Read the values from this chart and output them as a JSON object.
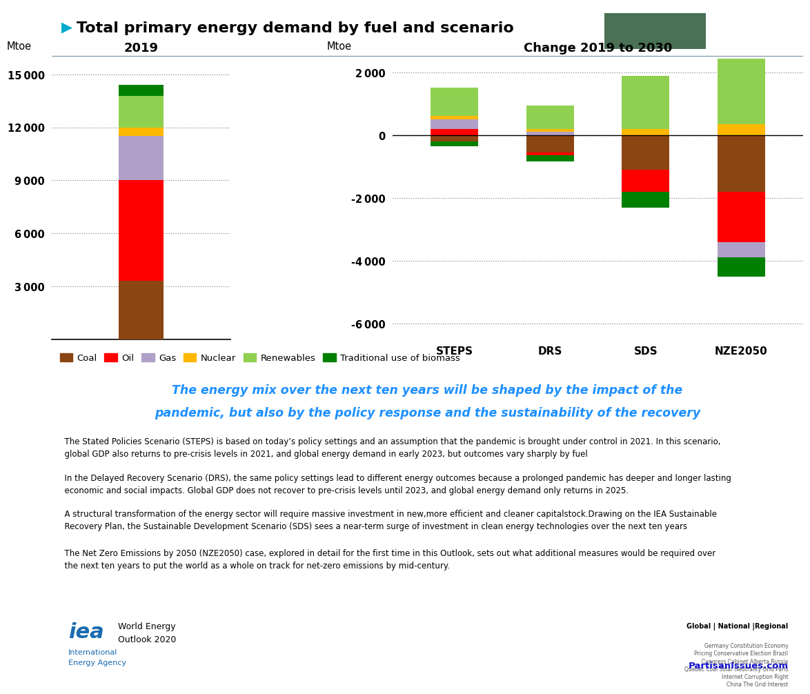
{
  "title": "Total primary energy demand by fuel and scenario",
  "arrow_color": "#00AACC",
  "green_box_color": "#4a7055",
  "left_title": "2019",
  "right_title": "Change 2019 to 2030",
  "ylabel": "Mtoe",
  "fuel_labels": [
    "Coal",
    "Oil",
    "Gas",
    "Nuclear",
    "Renewables",
    "Traditional use of biomass"
  ],
  "fuel_colors": [
    "#8B4513",
    "#FF0000",
    "#B0A0C8",
    "#FFB800",
    "#90D050",
    "#008000"
  ],
  "bar_2019": {
    "Coal": 3300,
    "Oil": 5700,
    "Gas": 2500,
    "Nuclear": 500,
    "Renewables": 1800,
    "Traditional use of biomass": 600
  },
  "left_ylim": [
    0,
    16000
  ],
  "left_yticks": [
    3000,
    6000,
    9000,
    12000,
    15000
  ],
  "right_ylim": [
    -6500,
    2500
  ],
  "right_yticks": [
    -6000,
    -4000,
    -2000,
    0,
    2000
  ],
  "scenarios": [
    "STEPS",
    "DRS",
    "SDS",
    "NZE2050"
  ],
  "change_pos": {
    "STEPS": {
      "Oil": 200,
      "Gas": 300,
      "Nuclear": 120,
      "Renewables": 900
    },
    "DRS": {
      "Gas": 120,
      "Nuclear": 80,
      "Renewables": 750
    },
    "SDS": {
      "Nuclear": 200,
      "Renewables": 1700
    },
    "NZE2050": {
      "Nuclear": 350,
      "Renewables": 2100
    }
  },
  "change_neg": {
    "STEPS": {
      "Coal": -200,
      "Traditional use of biomass": -150
    },
    "DRS": {
      "Coal": -550,
      "Oil": -80,
      "Traditional use of biomass": -200
    },
    "SDS": {
      "Coal": -1100,
      "Oil": -700,
      "Traditional use of biomass": -500
    },
    "NZE2050": {
      "Coal": -1800,
      "Oil": -1600,
      "Gas": -500,
      "Traditional use of biomass": -600
    }
  },
  "italic_line1": "The energy mix over the next ten years will be shaped by the impact of the",
  "italic_line2": "pandemic, but also by the policy response and the sustainability of the recovery",
  "italic_color": "#1E90FF",
  "body_texts": [
    "  The Stated Policies Scenario (STEPS) is based on today’s policy settings and an assumption that the pandemic is brought under control in 2021. In this scenario,\n  global GDP also returns to pre-crisis levels in 2021, and global energy demand in early 2023, but outcomes vary sharply by fuel",
    "  In the Delayed Recovery Scenario (DRS), the same policy settings lead to different energy outcomes because a prolonged pandemic has deeper and longer lasting\n  economic and social impacts. Global GDP does not recover to pre-crisis levels until 2023, and global energy demand only returns in 2025.",
    "  A structural transformation of the energy sector will require massive investment in new,more efficient and cleaner capitalstock.Drawing on the IEA Sustainable\n  Recovery Plan, the Sustainable Development Scenario (SDS) sees a near-term surge of investment in clean energy technologies over the next ten years",
    "  The Net Zero Emissions by 2050 (NZE2050) case, explored in detail for the first time in this Outlook, sets out what additional measures would be required over\n  the next ten years to put the world as a whole on track for net-zero emissions by mid-century."
  ],
  "iea_blue": "#1A6BAF",
  "background": "#FFFFFF"
}
